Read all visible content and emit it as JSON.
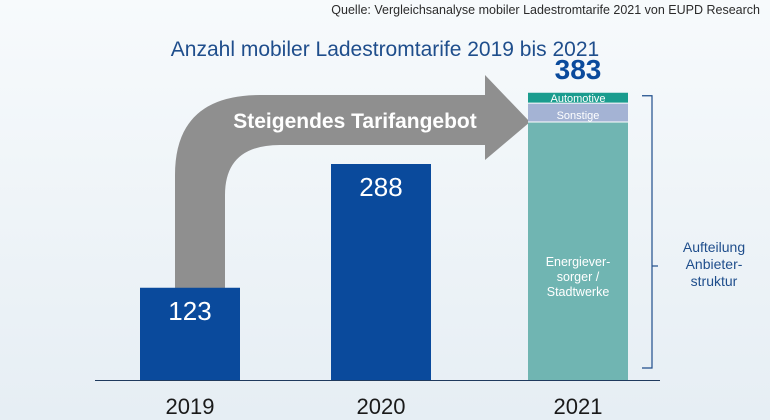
{
  "source": "Quelle: Vergleichsanalyse mobiler Ladestromtarife 2021 von EUPD Research",
  "chart_data": {
    "type": "bar",
    "title": "Anzahl mobiler Ladestromtarife 2019 bis 2021",
    "categories": [
      "2019",
      "2020",
      "2021"
    ],
    "values": [
      123,
      288,
      383
    ],
    "ylim": [
      0,
      400
    ],
    "grid": false,
    "breakdown_2021": {
      "segments": [
        {
          "label": "Energiever-\nsorger /\nStadtwerke",
          "color": "#70b5b2"
        },
        {
          "label": "Sonstige",
          "color": "#a4b3d4"
        },
        {
          "label": "Automotive",
          "color": "#1a9c8e"
        }
      ],
      "bracket_label": "Aufteilung\nAnbieter-\nstruktur"
    },
    "arrow_label": "Steigendes Tarifangebot",
    "colors": {
      "bar": "#0a4a9c",
      "arrow": "#8f8f8f",
      "bracket": "#1f4e8c",
      "total_label": "#0a4a9c"
    }
  }
}
